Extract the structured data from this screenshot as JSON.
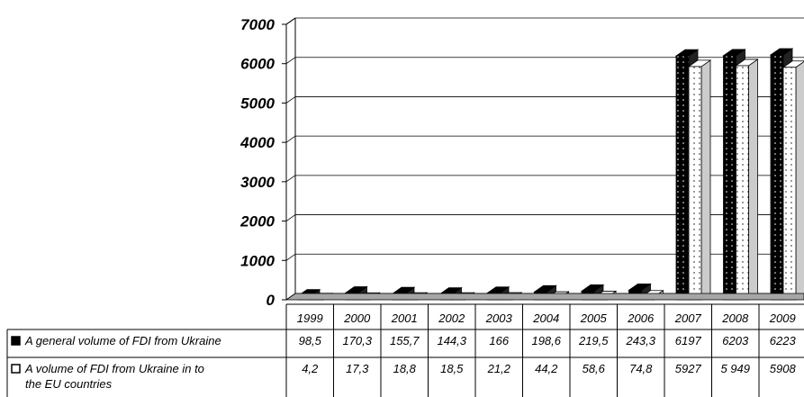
{
  "chart_data": {
    "type": "bar",
    "title": "",
    "xlabel": "",
    "ylabel": "",
    "ylim": [
      0,
      7000
    ],
    "yticks": [
      "0",
      "1000",
      "2000",
      "3000",
      "4000",
      "5000",
      "6000",
      "7000"
    ],
    "grid": true,
    "categories": [
      "1999",
      "2000",
      "2001",
      "2002",
      "2003",
      "2004",
      "2005",
      "2006",
      "2007",
      "2008",
      "2009"
    ],
    "series": [
      {
        "name": "A general volume of FDI from Ukraine",
        "legend_lines": [
          "A general volume of FDI from Ukraine"
        ],
        "values": [
          98.5,
          170.3,
          155.7,
          144.3,
          166,
          198.6,
          219.5,
          243.3,
          6197,
          6203,
          6223
        ],
        "labels": [
          "98,5",
          "170,3",
          "155,7",
          "144,3",
          "166",
          "198,6",
          "219,5",
          "243,3",
          "6197",
          "6203",
          "6223"
        ],
        "color": "#000000"
      },
      {
        "name": "A volume of FDI from Ukraine in to the EU countries",
        "legend_lines": [
          "A volume of FDI from Ukraine in to",
          "the EU countries"
        ],
        "values": [
          4.2,
          17.3,
          18.8,
          18.5,
          21.2,
          44.2,
          58.6,
          74.8,
          5927,
          5949,
          5908
        ],
        "labels": [
          "4,2",
          "17,3",
          "18,8",
          "18,5",
          "21,2",
          "44,2",
          "58,6",
          "74,8",
          "5927",
          "5 949",
          "5908"
        ],
        "color": "#ffffff"
      }
    ]
  }
}
